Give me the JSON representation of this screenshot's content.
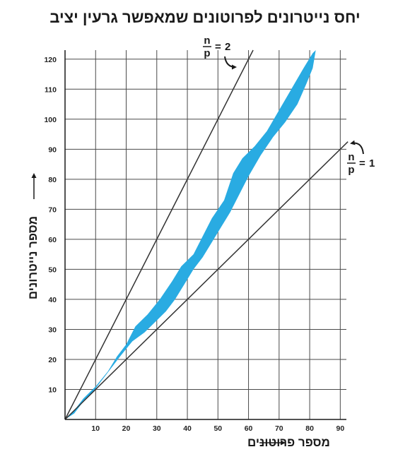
{
  "chart_data": {
    "type": "area",
    "title": "יחס נייטרונים לפרוטונים שמאפשר גרעין יציב",
    "xlabel": "מספר פרוטונים",
    "ylabel": "מספר נייטרונים",
    "xlim": [
      0,
      92
    ],
    "ylim": [
      0,
      123
    ],
    "xticks": [
      10,
      20,
      30,
      40,
      50,
      60,
      70,
      80,
      90
    ],
    "yticks": [
      10,
      20,
      30,
      40,
      50,
      60,
      70,
      80,
      90,
      100,
      110,
      120
    ],
    "grid": true,
    "band_color": "#29abe2",
    "line_color": "#333333",
    "stability_band": {
      "upper": [
        [
          0,
          0
        ],
        [
          3,
          3
        ],
        [
          6,
          7
        ],
        [
          10,
          11
        ],
        [
          14,
          16
        ],
        [
          17,
          21
        ],
        [
          20,
          25
        ],
        [
          23,
          31
        ],
        [
          27,
          35
        ],
        [
          31,
          40
        ],
        [
          35,
          46
        ],
        [
          38,
          51
        ],
        [
          42,
          55
        ],
        [
          45,
          61
        ],
        [
          48,
          67
        ],
        [
          52,
          73
        ],
        [
          55,
          82
        ],
        [
          58,
          87
        ],
        [
          62,
          91
        ],
        [
          66,
          96
        ],
        [
          70,
          103
        ],
        [
          74,
          110
        ],
        [
          78,
          117
        ],
        [
          81,
          122
        ],
        [
          82,
          123
        ]
      ],
      "lower": [
        [
          82,
          123
        ],
        [
          81,
          117
        ],
        [
          79,
          112
        ],
        [
          76,
          105
        ],
        [
          72,
          99
        ],
        [
          68,
          94
        ],
        [
          64,
          88
        ],
        [
          60,
          81
        ],
        [
          57,
          75
        ],
        [
          54,
          69
        ],
        [
          51,
          64
        ],
        [
          48,
          59
        ],
        [
          45,
          54
        ],
        [
          42,
          50
        ],
        [
          39,
          45
        ],
        [
          36,
          40
        ],
        [
          33,
          36
        ],
        [
          30,
          33
        ],
        [
          26,
          29
        ],
        [
          22,
          26
        ],
        [
          18,
          21
        ],
        [
          15,
          17
        ],
        [
          12,
          13
        ],
        [
          9,
          9
        ],
        [
          6,
          6
        ],
        [
          3,
          2
        ],
        [
          0,
          0
        ]
      ]
    },
    "reference_lines": [
      {
        "n_over_p": 2,
        "from": [
          0,
          0
        ],
        "to": [
          61.5,
          123
        ],
        "label_value": "2",
        "label_num": "n",
        "label_den": "p"
      },
      {
        "n_over_p": 1,
        "from": [
          0,
          0
        ],
        "to": [
          92.5,
          92.5
        ],
        "label_value": "1",
        "label_num": "n",
        "label_den": "p"
      }
    ]
  }
}
